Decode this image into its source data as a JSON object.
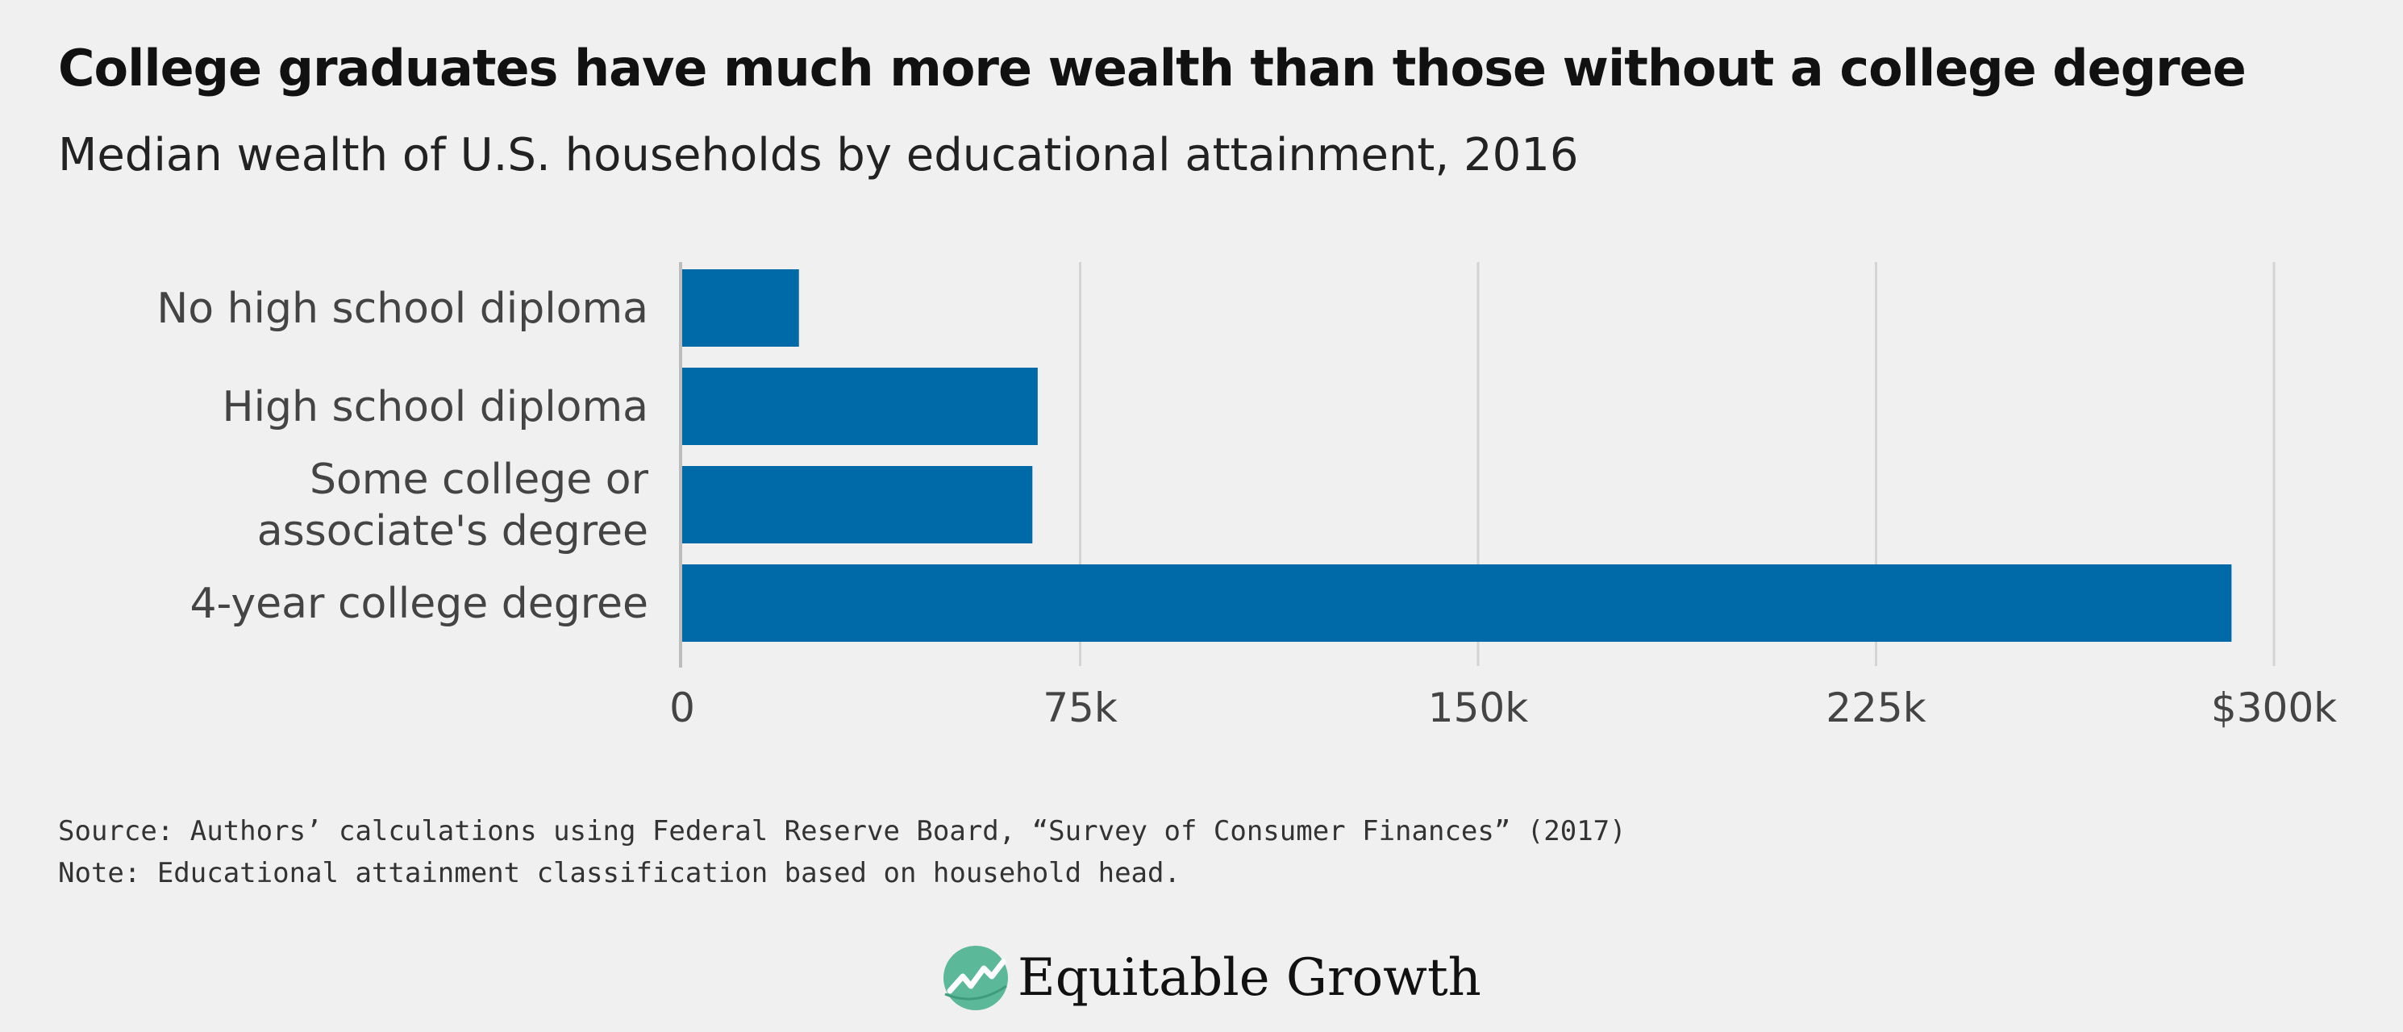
{
  "title": "College graduates have much more wealth than those without a college degree",
  "subtitle": "Median wealth of U.S. households by educational attainment, 2016",
  "chart_data": {
    "type": "bar",
    "orientation": "horizontal",
    "categories": [
      "No high school diploma",
      "High school diploma",
      "Some college or associate's degree",
      "4-year college degree"
    ],
    "category_lines": [
      [
        "No high school diploma"
      ],
      [
        "High school diploma"
      ],
      [
        "Some college or",
        "associate's degree"
      ],
      [
        "4-year college degree"
      ]
    ],
    "values": [
      22000,
      67000,
      66000,
      292000
    ],
    "xlim": [
      0,
      300000
    ],
    "xticks": [
      0,
      75000,
      150000,
      225000,
      300000
    ],
    "xtick_labels": [
      "0",
      "75k",
      "150k",
      "225k",
      "$300k"
    ],
    "xlabel": "",
    "ylabel": "",
    "grid": "vertical",
    "legend": "none",
    "bar_color": "#0069a7",
    "grid_color": "#d4d4d4",
    "axis_color": "#bdbdbd"
  },
  "footer": {
    "source": "Source: Authors’ calculations using Federal Reserve Board, “Survey of Consumer Finances” (2017)",
    "note": "Note: Educational attainment classification based on household head."
  },
  "brand": {
    "name": "Equitable Growth",
    "logo_icon": "equitable-growth-logo-icon",
    "logo_color": "#5bb898"
  }
}
